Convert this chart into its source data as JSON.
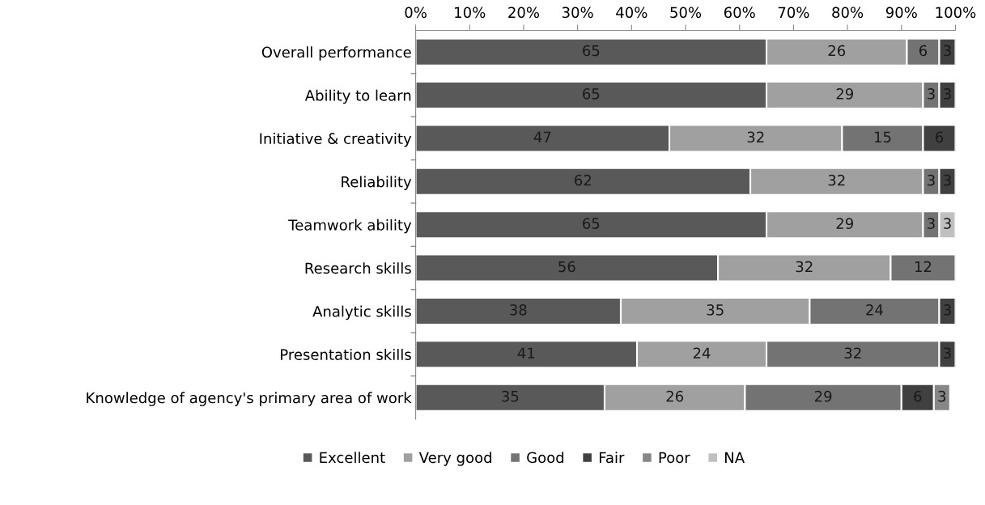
{
  "chart_data": {
    "type": "bar",
    "orientation": "horizontal",
    "stacked": true,
    "data_labels": true,
    "legend": "bottom",
    "grid": false,
    "categories": [
      "Overall performance",
      "Ability to learn",
      "Initiative & creativity",
      "Reliability",
      "Teamwork ability",
      "Research skills",
      "Analytic skills",
      "Presentation skills",
      "Knowledge of agency's primary area of work"
    ],
    "xlim": [
      0,
      100
    ],
    "xticks": [
      {
        "value": 0,
        "label": "0%"
      },
      {
        "value": 10,
        "label": "10%"
      },
      {
        "value": 20,
        "label": "20%"
      },
      {
        "value": 30,
        "label": "30%"
      },
      {
        "value": 40,
        "label": "40%"
      },
      {
        "value": 50,
        "label": "50%"
      },
      {
        "value": 60,
        "label": "60%"
      },
      {
        "value": 70,
        "label": "70%"
      },
      {
        "value": 80,
        "label": "80%"
      },
      {
        "value": 90,
        "label": "90%"
      },
      {
        "value": 100,
        "label": "100%"
      }
    ],
    "series": [
      {
        "name": "Excellent",
        "color": "#595959",
        "values": [
          65,
          65,
          47,
          62,
          65,
          56,
          38,
          41,
          35
        ]
      },
      {
        "name": "Very good",
        "color": "#a0a0a0",
        "values": [
          26,
          29,
          32,
          32,
          29,
          32,
          35,
          24,
          26
        ]
      },
      {
        "name": "Good",
        "color": "#737373",
        "values": [
          6,
          3,
          15,
          3,
          3,
          12,
          24,
          32,
          29
        ]
      },
      {
        "name": "Fair",
        "color": "#404040",
        "values": [
          3,
          3,
          6,
          3,
          null,
          null,
          3,
          3,
          6
        ]
      },
      {
        "name": "Poor",
        "color": "#878787",
        "values": [
          null,
          null,
          null,
          null,
          null,
          null,
          null,
          null,
          3
        ]
      },
      {
        "name": "NA",
        "color": "#c0c0c0",
        "values": [
          null,
          null,
          null,
          null,
          3,
          null,
          null,
          null,
          null
        ]
      }
    ]
  }
}
